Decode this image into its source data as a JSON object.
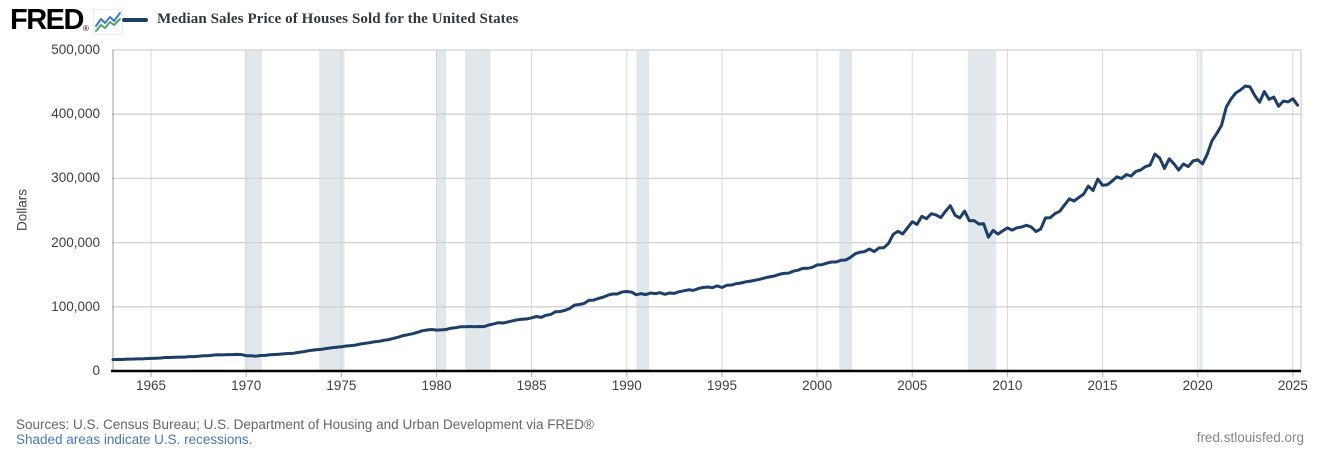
{
  "header": {
    "logo_text": "FRED",
    "logo_registered": "®",
    "legend_label": "Median Sales Price of Houses Sold for the United States"
  },
  "footer": {
    "sources_text": "Sources: U.S. Census Bureau; U.S. Department of Housing and Urban Development via FRED®",
    "recession_note": "Shaded areas indicate U.S. recessions.",
    "site_url": "fred.stlouisfed.org"
  },
  "colors": {
    "line": "#1d3e69",
    "recession_band": "#e2e7ec",
    "gridline": "#d2d2d2",
    "plot_border": "#9c9c9c",
    "axis": "#000000",
    "tick": "#b7c3cc",
    "icon_blue": "#3b7dc8",
    "icon_green": "#52a06a"
  },
  "chart_data": {
    "type": "line",
    "title": "Median Sales Price of Houses Sold for the United States",
    "ylabel": "Dollars",
    "units": "Dollars",
    "frequency": "quarterly",
    "start_year": 1963,
    "period_years": 0.25,
    "xlim": [
      1963,
      2025.42
    ],
    "ylim": [
      0,
      500000
    ],
    "x_ticks": [
      1965,
      1970,
      1975,
      1980,
      1985,
      1990,
      1995,
      2000,
      2005,
      2010,
      2015,
      2020,
      2025
    ],
    "y_ticks": [
      0,
      100000,
      200000,
      300000,
      400000,
      500000
    ],
    "grid": true,
    "legend_position": "top-left",
    "recessions": [
      [
        1969.917,
        1970.833
      ],
      [
        1973.833,
        1975.167
      ],
      [
        1980.0,
        1980.5
      ],
      [
        1981.5,
        1982.833
      ],
      [
        1990.5,
        1991.167
      ],
      [
        2001.167,
        2001.833
      ],
      [
        2007.917,
        2009.417
      ],
      [
        2020.083,
        2020.25
      ]
    ],
    "values": [
      17800,
      18000,
      17900,
      18500,
      18500,
      18900,
      18900,
      19300,
      19600,
      20000,
      20300,
      21000,
      21000,
      21400,
      21600,
      21700,
      22400,
      22400,
      23100,
      23700,
      23900,
      24700,
      25200,
      25100,
      25600,
      25600,
      25900,
      25600,
      23900,
      23700,
      23000,
      24200,
      24300,
      25200,
      25700,
      26200,
      26800,
      27200,
      27700,
      29000,
      29900,
      31500,
      32500,
      33400,
      34000,
      35200,
      36100,
      37000,
      37700,
      38900,
      39600,
      40300,
      42000,
      43200,
      44200,
      45600,
      46300,
      48000,
      48900,
      51000,
      52800,
      55100,
      56600,
      58100,
      60300,
      62600,
      63800,
      64700,
      63700,
      64000,
      64600,
      66600,
      67300,
      68900,
      68900,
      69300,
      68900,
      69300,
      69200,
      71700,
      73300,
      75200,
      74800,
      76500,
      78200,
      79800,
      80500,
      81100,
      82800,
      84900,
      83500,
      86800,
      88000,
      92200,
      92700,
      94500,
      97400,
      102700,
      103600,
      105200,
      110000,
      110500,
      113000,
      115000,
      118000,
      120000,
      120000,
      123000,
      123900,
      122900,
      118700,
      120500,
      119000,
      121500,
      120500,
      122000,
      119500,
      121500,
      120800,
      123500,
      125000,
      126500,
      125500,
      128300,
      130000,
      130900,
      129800,
      132500,
      130000,
      133500,
      134000,
      136000,
      137000,
      139000,
      140000,
      141500,
      143000,
      145000,
      146500,
      148000,
      150500,
      152000,
      152500,
      155500,
      157000,
      159800,
      160000,
      161600,
      165300,
      165500,
      167900,
      169800,
      169800,
      172500,
      172900,
      177000,
      182500,
      185000,
      186000,
      190000,
      186000,
      191800,
      191900,
      198800,
      212700,
      217600,
      213500,
      223100,
      232500,
      228300,
      240900,
      237300,
      244950,
      243200,
      239000,
      249100,
      257400,
      242500,
      238500,
      249100,
      233900,
      234300,
      228800,
      229600,
      208400,
      219000,
      213200,
      218200,
      222900,
      219500,
      223000,
      224300,
      226900,
      224500,
      217100,
      221200,
      238400,
      238700,
      245200,
      248800,
      258400,
      268100,
      264800,
      270200,
      275200,
      288000,
      281000,
      298900,
      289200,
      290100,
      295800,
      302500,
      299800,
      306000,
      303800,
      310900,
      313100,
      318200,
      320500,
      337900,
      331800,
      315600,
      330600,
      322800,
      313000,
      322500,
      318400,
      327100,
      329000,
      322600,
      337500,
      358700,
      369800,
      382600,
      411200,
      423600,
      433100,
      437700,
      444000,
      442600,
      429000,
      418500,
      435400,
      423200,
      426800,
      412300,
      420400,
      419200,
      424000,
      414000
    ]
  }
}
